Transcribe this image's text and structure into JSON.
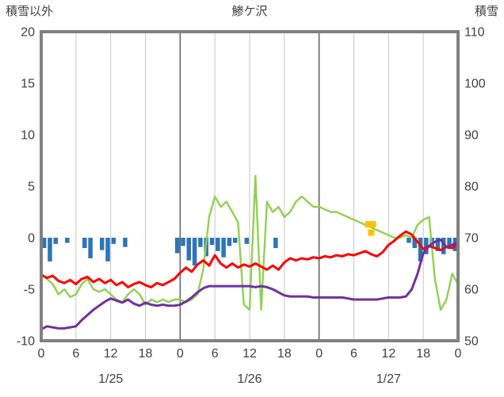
{
  "header": {
    "left_axis_title": "積雪以外",
    "title": "鯵ケ沢",
    "right_axis_title": "積雪"
  },
  "colors": {
    "text": "#404040",
    "frame": "#808080",
    "grid_minor": "#c6c6c6",
    "grid_major": "#666666",
    "bar_blue": "#2e75b6",
    "line_red": "#ff0000",
    "line_purple": "#7030a0",
    "line_green": "#92d050",
    "marker_orange": "#ffc000"
  },
  "chart_data": {
    "type": "line+bar",
    "title": "鯵ケ沢",
    "x_axis": {
      "unit": "hour",
      "total_hours": 72,
      "tick_step": 6,
      "tick_hours": [
        0,
        6,
        12,
        18,
        24,
        30,
        36,
        42,
        48,
        54,
        60,
        66,
        72
      ],
      "tick_labels": [
        "0",
        "6",
        "12",
        "18",
        "0",
        "6",
        "12",
        "18",
        "0",
        "6",
        "12",
        "18",
        "0"
      ],
      "day_labels": [
        {
          "label": "1/25",
          "hour": 12
        },
        {
          "label": "1/26",
          "hour": 36
        },
        {
          "label": "1/27",
          "hour": 60
        }
      ]
    },
    "left_axis": {
      "title": "積雪以外",
      "min": -10,
      "max": 20,
      "ticks": [
        20,
        15,
        10,
        5,
        0,
        -5,
        -10
      ]
    },
    "right_axis": {
      "title": "積雪",
      "min": 50,
      "max": 110,
      "ticks": [
        110,
        100,
        90,
        80,
        70,
        60,
        50
      ]
    },
    "series": [
      {
        "name": "blue-bars",
        "type": "bar",
        "axis": "left",
        "color": "#2e75b6",
        "values": [
          -1.0,
          -2.3,
          -0.6,
          0,
          -0.5,
          0,
          0,
          -1.0,
          -2.0,
          0,
          -1.2,
          -2.3,
          -0.6,
          0,
          -0.9,
          0,
          0,
          0,
          0,
          0,
          0,
          0,
          0,
          -1.5,
          -0.8,
          -2.2,
          -2.7,
          -0.9,
          -1.8,
          -0.7,
          -1.3,
          -1.9,
          -0.8,
          -0.5,
          0,
          -0.6,
          0,
          0,
          0,
          0,
          -1.0,
          0,
          0,
          0,
          0,
          0,
          0,
          0,
          0,
          0,
          0,
          0,
          0,
          0,
          0,
          0,
          0,
          0,
          0,
          0,
          0,
          0,
          0,
          -0.5,
          -1.0,
          -2.3,
          -1.6,
          -0.9,
          -1.3,
          -1.6,
          -1.1,
          -1.3
        ]
      },
      {
        "name": "red-line",
        "type": "line",
        "axis": "left",
        "color": "#ff0000",
        "values": [
          -3.6,
          -3.9,
          -3.7,
          -4.2,
          -4.4,
          -4.1,
          -4.5,
          -4.0,
          -3.8,
          -4.3,
          -4.0,
          -4.4,
          -4.1,
          -4.6,
          -4.3,
          -4.8,
          -4.5,
          -4.3,
          -4.6,
          -4.8,
          -4.4,
          -4.6,
          -4.3,
          -4.0,
          -3.4,
          -2.9,
          -3.3,
          -2.6,
          -2.2,
          -2.7,
          -1.7,
          -2.5,
          -2.9,
          -2.5,
          -2.9,
          -2.6,
          -2.8,
          -2.5,
          -2.8,
          -3.1,
          -2.7,
          -3.1,
          -2.4,
          -2.0,
          -2.2,
          -2.0,
          -2.1,
          -1.9,
          -2.0,
          -1.8,
          -1.9,
          -1.7,
          -1.8,
          -1.6,
          -1.7,
          -1.5,
          -1.3,
          -1.6,
          -1.8,
          -1.4,
          -0.7,
          -0.3,
          0.2,
          0.6,
          0.3,
          -0.4,
          -1.1,
          -0.8,
          -1.0,
          -1.2,
          -0.9,
          -1.0,
          -0.5
        ]
      },
      {
        "name": "purple-line",
        "type": "line",
        "axis": "left",
        "color": "#7030a0",
        "values": [
          -8.9,
          -8.6,
          -8.7,
          -8.8,
          -8.8,
          -8.7,
          -8.6,
          -8.0,
          -7.5,
          -7.0,
          -6.6,
          -6.2,
          -5.9,
          -6.1,
          -6.3,
          -6.0,
          -6.4,
          -6.6,
          -6.3,
          -6.5,
          -6.6,
          -6.5,
          -6.6,
          -6.6,
          -6.5,
          -6.2,
          -5.8,
          -5.3,
          -4.9,
          -4.7,
          -4.7,
          -4.7,
          -4.7,
          -4.7,
          -4.7,
          -4.7,
          -4.7,
          -4.8,
          -4.7,
          -4.8,
          -5.0,
          -5.3,
          -5.6,
          -5.7,
          -5.7,
          -5.7,
          -5.7,
          -5.8,
          -5.8,
          -5.8,
          -5.8,
          -5.8,
          -5.8,
          -5.9,
          -6.0,
          -6.0,
          -6.0,
          -6.0,
          -6.0,
          -5.9,
          -5.8,
          -5.8,
          -5.8,
          -5.7,
          -5.0,
          -3.5,
          -1.5,
          -0.8,
          -0.4,
          -0.2,
          -0.9,
          -0.7,
          -0.4
        ]
      },
      {
        "name": "green-line",
        "type": "line",
        "axis": "right",
        "color": "#92d050",
        "values": [
          63,
          62,
          61,
          59,
          60,
          58.5,
          59,
          61,
          62,
          60,
          59.5,
          60,
          59,
          58,
          57.5,
          59,
          60,
          59,
          57,
          58,
          57.5,
          58,
          57.5,
          58,
          58,
          57.5,
          58,
          59,
          64,
          74,
          78,
          76,
          77,
          75,
          73,
          57,
          56,
          82,
          56,
          77,
          75,
          76,
          74,
          75,
          77,
          78,
          77,
          76,
          76,
          75.5,
          75,
          75,
          74.5,
          74,
          73.5,
          73,
          72.5,
          72,
          71.5,
          71,
          70.5,
          70,
          70,
          70.5,
          70,
          72.5,
          73.5,
          74,
          62,
          56,
          58,
          63,
          61
        ]
      },
      {
        "name": "orange-markers",
        "type": "point",
        "axis": "left",
        "color": "#ffc000",
        "points": [
          [
            56.5,
            1.3
          ],
          [
            57.3,
            1.3
          ],
          [
            57.0,
            0.5
          ]
        ]
      }
    ]
  },
  "layout_text": {
    "note": ""
  }
}
